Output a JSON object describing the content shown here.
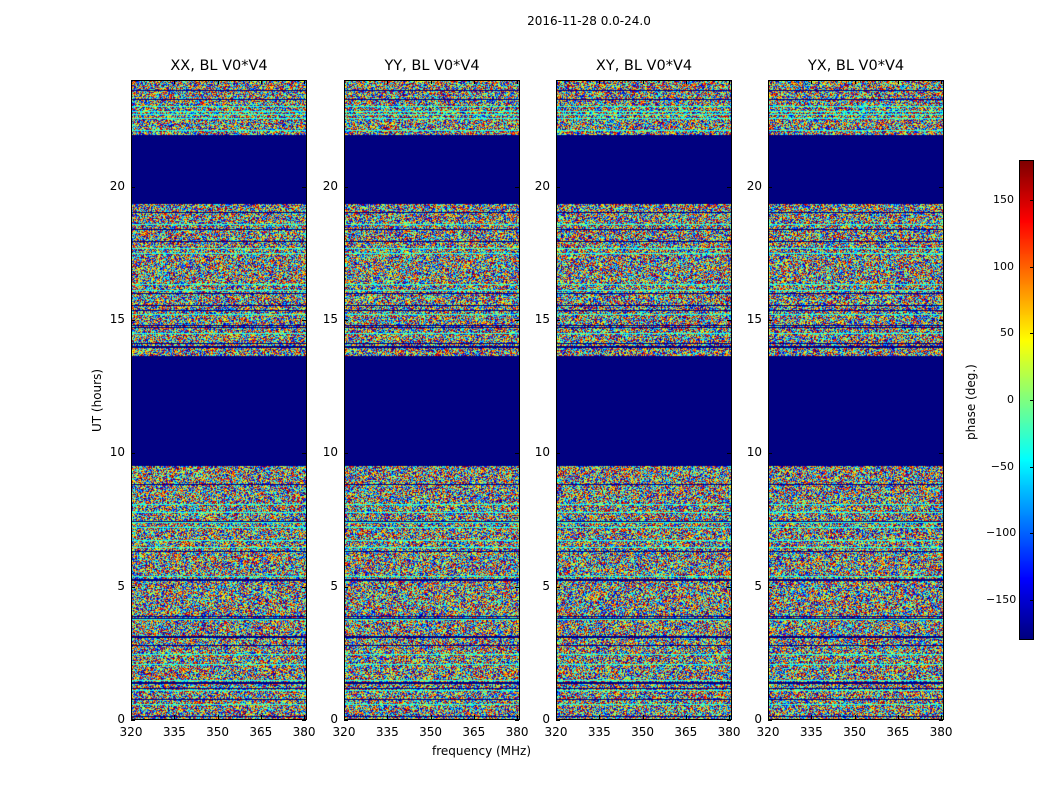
{
  "chart_data": {
    "type": "heatmap",
    "suptitle": "2016-11-28 0.0-24.0",
    "xlabel": "frequency (MHz)",
    "ylabel": "UT (hours)",
    "xlim": [
      320,
      381
    ],
    "ylim": [
      0,
      24
    ],
    "xticks": [
      "320",
      "335",
      "350",
      "365",
      "380"
    ],
    "yticks": [
      "0",
      "5",
      "10",
      "15",
      "20"
    ],
    "panels": [
      {
        "title": "XX, BL V0*V4"
      },
      {
        "title": "YY, BL V0*V4"
      },
      {
        "title": "XY, BL V0*V4"
      },
      {
        "title": "YX, BL V0*V4"
      }
    ],
    "flagged_ut_ranges_hours": [
      [
        9.6,
        13.7
      ],
      [
        19.4,
        22.0
      ]
    ],
    "colorbar": {
      "label": "phase (deg.)",
      "range": [
        -180,
        180
      ],
      "ticks": [
        "150",
        "100",
        "50",
        "0",
        "−50",
        "−100",
        "−150"
      ],
      "tick_values": [
        150,
        100,
        50,
        0,
        -50,
        -100,
        -150
      ],
      "colormap": "jet"
    }
  }
}
